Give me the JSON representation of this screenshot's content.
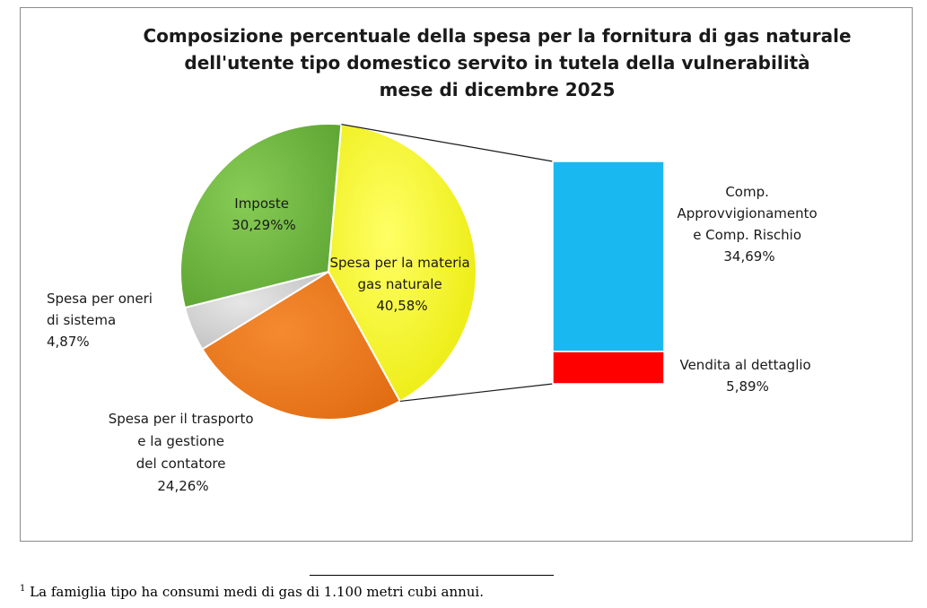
{
  "chart_data": {
    "type": "pie",
    "title": [
      "Composizione percentuale della spesa per la fornitura di gas naturale",
      "dell'utente tipo domestico servito in tutela della vulnerabilità",
      "mese di dicembre 2025"
    ],
    "slices": [
      {
        "key": "materia",
        "label_lines": [
          "Spesa per la materia",
          "gas naturale"
        ],
        "value_label": "40,58%",
        "value": 40.58,
        "color": "#ffff33"
      },
      {
        "key": "trasporto",
        "label_lines": [
          "Spesa per il trasporto",
          "e la gestione",
          "del contatore"
        ],
        "value_label": "24,26%",
        "value": 24.26,
        "color": "#f07818"
      },
      {
        "key": "oneri",
        "label_lines": [
          "Spesa per oneri",
          "di sistema"
        ],
        "value_label": "4,87%",
        "value": 4.87,
        "color": "#d9d9d9"
      },
      {
        "key": "imposte",
        "label_lines": [
          "Imposte"
        ],
        "value_label": "30,29%%",
        "value": 30.29,
        "color": "#6fc040"
      }
    ],
    "breakdown": {
      "parent": "materia",
      "segments": [
        {
          "key": "approvvigionamento",
          "label_lines": [
            "Comp.",
            "Approvvigionamento",
            "e  Comp. Rischio"
          ],
          "value_label": "34,69%",
          "value": 34.69,
          "color": "#1ab8f0"
        },
        {
          "key": "vendita",
          "label_lines": [
            "Vendita al dettaglio"
          ],
          "value_label": "5,89%",
          "value": 5.89,
          "color": "#ff0000"
        }
      ]
    }
  },
  "footnote": {
    "marker": "1",
    "text": "La famiglia tipo ha consumi medi di gas di 1.100 metri cubi annui."
  }
}
